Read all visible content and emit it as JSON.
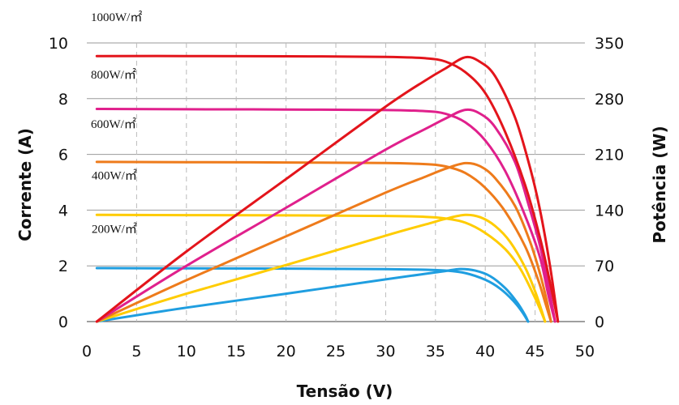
{
  "chart_data": {
    "type": "line",
    "xlabel": "Tensão (V)",
    "ylabel_left": "Corrente (A)",
    "ylabel_right": "Potência (W)",
    "xlim": [
      0,
      50
    ],
    "ylim_left": [
      0,
      10
    ],
    "ylim_right": [
      0,
      350
    ],
    "x_ticks": [
      "0",
      "5",
      "10",
      "15",
      "20",
      "25",
      "30",
      "35",
      "40",
      "45",
      "50"
    ],
    "y_left_ticks": [
      "0",
      "2",
      "4",
      "6",
      "8",
      "10"
    ],
    "y_right_ticks": [
      "0",
      "70",
      "140",
      "210",
      "280",
      "350"
    ],
    "grid": true,
    "series": [
      {
        "name": "1000W/㎡",
        "color": "#e3141b",
        "isc": 9.5,
        "voc": 47.3,
        "pmax": 333,
        "vmp": 38.3,
        "iv_points": [
          [
            1,
            9.53
          ],
          [
            10,
            9.53
          ],
          [
            20,
            9.52
          ],
          [
            30,
            9.5
          ],
          [
            34,
            9.45
          ],
          [
            36,
            9.33
          ],
          [
            38,
            8.95
          ],
          [
            40,
            8.2
          ],
          [
            42,
            6.8
          ],
          [
            44,
            4.9
          ],
          [
            45.5,
            3.0
          ],
          [
            46.5,
            1.4
          ],
          [
            47.3,
            0
          ]
        ],
        "p_points": [
          [
            1,
            0
          ],
          [
            10,
            88
          ],
          [
            20,
            179
          ],
          [
            30,
            270
          ],
          [
            34,
            303
          ],
          [
            36,
            318
          ],
          [
            38,
            332
          ],
          [
            39.5,
            326
          ],
          [
            41,
            308
          ],
          [
            43,
            256
          ],
          [
            44.5,
            193
          ],
          [
            45.5,
            140
          ],
          [
            46.5,
            70
          ],
          [
            47.3,
            0
          ]
        ]
      },
      {
        "name": "800W/㎡",
        "color": "#e0208c",
        "isc": 7.62,
        "voc": 47.0,
        "pmax": 267,
        "vmp": 38.1,
        "iv_points": [
          [
            1,
            7.63
          ],
          [
            10,
            7.62
          ],
          [
            20,
            7.61
          ],
          [
            30,
            7.59
          ],
          [
            34,
            7.55
          ],
          [
            36,
            7.46
          ],
          [
            38,
            7.15
          ],
          [
            40,
            6.5
          ],
          [
            42,
            5.4
          ],
          [
            44,
            3.8
          ],
          [
            45.5,
            2.3
          ],
          [
            46.3,
            1.0
          ],
          [
            47.0,
            0
          ]
        ],
        "p_points": [
          [
            1,
            0
          ],
          [
            10,
            70
          ],
          [
            20,
            143
          ],
          [
            30,
            216
          ],
          [
            34,
            242
          ],
          [
            36,
            255
          ],
          [
            38,
            266
          ],
          [
            39.5,
            261
          ],
          [
            41,
            244
          ],
          [
            43,
            200
          ],
          [
            44.5,
            140
          ],
          [
            45.5,
            95
          ],
          [
            46.3,
            48
          ],
          [
            47.0,
            0
          ]
        ]
      },
      {
        "name": "600W/㎡",
        "color": "#ee7b1b",
        "isc": 5.72,
        "voc": 46.6,
        "pmax": 200,
        "vmp": 38.0,
        "iv_points": [
          [
            1,
            5.73
          ],
          [
            10,
            5.72
          ],
          [
            20,
            5.71
          ],
          [
            30,
            5.69
          ],
          [
            34,
            5.65
          ],
          [
            36,
            5.57
          ],
          [
            38,
            5.33
          ],
          [
            40,
            4.8
          ],
          [
            42,
            3.95
          ],
          [
            44,
            2.7
          ],
          [
            45.3,
            1.5
          ],
          [
            46.0,
            0.7
          ],
          [
            46.6,
            0
          ]
        ],
        "p_points": [
          [
            1,
            0
          ],
          [
            10,
            52
          ],
          [
            20,
            107
          ],
          [
            30,
            162
          ],
          [
            34,
            182
          ],
          [
            36,
            192
          ],
          [
            38,
            199
          ],
          [
            39.5,
            195
          ],
          [
            41,
            180
          ],
          [
            43,
            145
          ],
          [
            44.5,
            100
          ],
          [
            45.5,
            60
          ],
          [
            46.1,
            30
          ],
          [
            46.6,
            0
          ]
        ]
      },
      {
        "name": "400W/㎡",
        "color": "#ffcc00",
        "isc": 3.82,
        "voc": 46.0,
        "pmax": 134,
        "vmp": 38.0,
        "iv_points": [
          [
            1,
            3.83
          ],
          [
            10,
            3.82
          ],
          [
            20,
            3.81
          ],
          [
            30,
            3.79
          ],
          [
            34,
            3.76
          ],
          [
            36,
            3.7
          ],
          [
            38,
            3.55
          ],
          [
            40,
            3.18
          ],
          [
            42,
            2.6
          ],
          [
            43.5,
            1.9
          ],
          [
            44.8,
            1.0
          ],
          [
            45.5,
            0.45
          ],
          [
            46.0,
            0
          ]
        ],
        "p_points": [
          [
            1,
            0
          ],
          [
            10,
            35
          ],
          [
            20,
            71
          ],
          [
            30,
            108
          ],
          [
            34,
            122
          ],
          [
            36,
            129
          ],
          [
            38,
            134
          ],
          [
            39.5,
            131
          ],
          [
            41,
            120
          ],
          [
            42.5,
            100
          ],
          [
            44,
            68
          ],
          [
            45,
            38
          ],
          [
            45.6,
            16
          ],
          [
            46.0,
            0
          ]
        ]
      },
      {
        "name": "200W/㎡",
        "color": "#1f9ee0",
        "isc": 1.91,
        "voc": 44.3,
        "pmax": 67,
        "vmp": 37.5,
        "iv_points": [
          [
            1,
            1.92
          ],
          [
            10,
            1.91
          ],
          [
            20,
            1.9
          ],
          [
            30,
            1.88
          ],
          [
            34,
            1.86
          ],
          [
            36,
            1.83
          ],
          [
            38,
            1.74
          ],
          [
            40,
            1.5
          ],
          [
            41.5,
            1.18
          ],
          [
            42.8,
            0.75
          ],
          [
            43.7,
            0.35
          ],
          [
            44.3,
            0
          ]
        ],
        "p_points": [
          [
            1,
            0
          ],
          [
            10,
            17.5
          ],
          [
            20,
            35
          ],
          [
            30,
            53
          ],
          [
            34,
            60
          ],
          [
            36,
            63.5
          ],
          [
            37.5,
            66
          ],
          [
            39,
            64
          ],
          [
            40.5,
            57
          ],
          [
            42,
            42
          ],
          [
            43.2,
            24
          ],
          [
            44.0,
            8
          ],
          [
            44.3,
            0
          ]
        ]
      }
    ]
  }
}
